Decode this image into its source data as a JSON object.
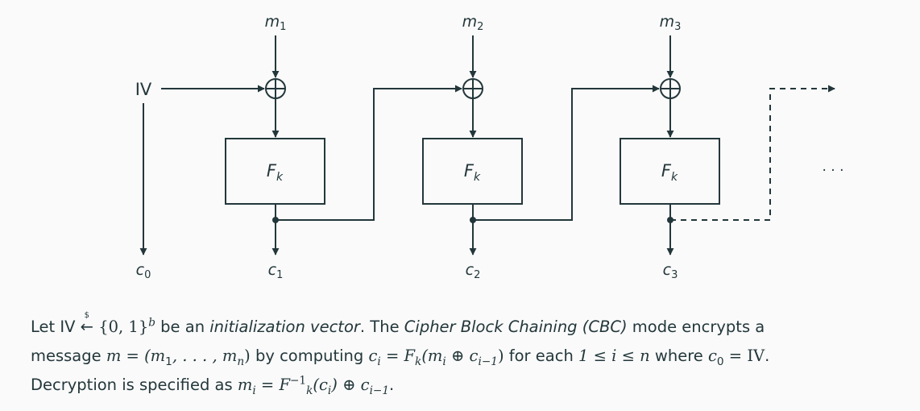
{
  "inputs": [
    {
      "label": "m",
      "sub": "1"
    },
    {
      "label": "m",
      "sub": "2"
    },
    {
      "label": "m",
      "sub": "3"
    }
  ],
  "outputs": [
    {
      "label": "c",
      "sub": "0"
    },
    {
      "label": "c",
      "sub": "1"
    },
    {
      "label": "c",
      "sub": "2"
    },
    {
      "label": "c",
      "sub": "3"
    }
  ],
  "iv_label": "IV",
  "block_label": {
    "label": "F",
    "sub": "k"
  },
  "continuation": "· · ·",
  "colors": {
    "ink": "#23373b",
    "background": "#fafafa"
  },
  "caption": {
    "line1": {
      "t1": "Let ",
      "iv": "IV",
      "dollar": "$",
      "set": "{0, 1}",
      "exp": "b",
      "t2": " be an ",
      "term1": "initialization vector",
      "t3": ". The ",
      "term2": "Cipher Block Chaining (CBC)",
      "t4": " mode encrypts a"
    },
    "line2": {
      "t1": "message ",
      "m_def": "m = (m",
      "m_sub1": "1",
      "m_mid": ", . . . , m",
      "m_subn": "n",
      "m_end": ")",
      "t2": " by computing ",
      "ci": "c",
      "ci_sub": "i",
      "eq": " = F",
      "k_sub": "k",
      "paren": "(m",
      "mi_sub": "i",
      "xor": " ⊕ c",
      "prev_sub": "i−1",
      "close": ")",
      "t3": " for each ",
      "range": "1 ≤ i ≤ n",
      "t4": " where ",
      "c0": "c",
      "c0_sub": "0",
      "c0_eq": " = IV",
      "t5": "."
    },
    "line3": {
      "t1": "Decryption is specified as ",
      "mi": "m",
      "mi_sub": "i",
      "eq": " = F",
      "sup": "−1",
      "sub": "k",
      "arg": "(c",
      "arg_sub": "i",
      "xor": ") ⊕ c",
      "prev_sub": "i−1",
      "t2": "."
    }
  }
}
